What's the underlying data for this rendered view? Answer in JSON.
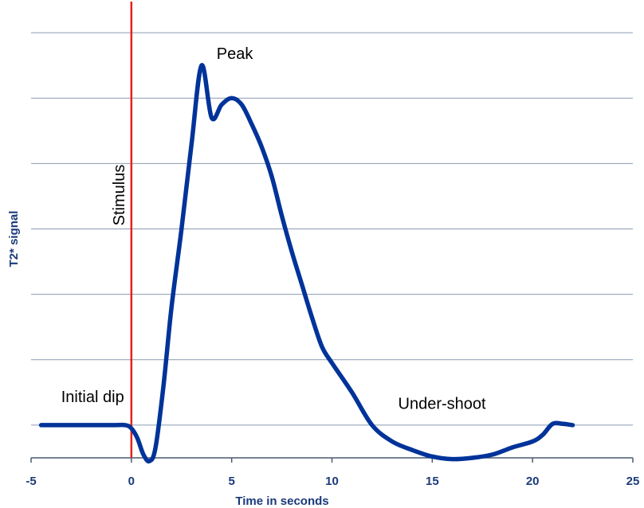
{
  "chart_data": {
    "type": "line",
    "title": "",
    "xlabel": "Time in seconds",
    "ylabel": "T2* signal",
    "xlim": [
      -5,
      25
    ],
    "ylim": [
      -0.5,
      6.5
    ],
    "xticks": [
      "-5",
      "0",
      "5",
      "10",
      "15",
      "20",
      "25"
    ],
    "grid": "horizontal",
    "series": [
      {
        "color": "#003399",
        "x": [
          -4.5,
          -3,
          -1,
          -0.3,
          0,
          0.3,
          0.6,
          0.9,
          1.2,
          1.6,
          2,
          2.5,
          3,
          3.5,
          4,
          4.5,
          5,
          5.5,
          6,
          6.5,
          7,
          7.5,
          8,
          8.5,
          9,
          9.5,
          10,
          11,
          12,
          13,
          14,
          15,
          16,
          17,
          18,
          19,
          20,
          20.5,
          21,
          21.5,
          22
        ],
        "y": [
          0,
          0,
          0,
          0,
          -0.05,
          -0.2,
          -0.45,
          -0.55,
          -0.35,
          0.6,
          1.8,
          3.0,
          4.3,
          5.5,
          4.7,
          4.9,
          5.0,
          4.9,
          4.6,
          4.25,
          3.8,
          3.2,
          2.65,
          2.15,
          1.65,
          1.2,
          0.95,
          0.5,
          0.0,
          -0.25,
          -0.38,
          -0.48,
          -0.52,
          -0.5,
          -0.45,
          -0.34,
          -0.25,
          -0.15,
          0.02,
          0.02,
          0.0
        ]
      }
    ],
    "markers": [
      {
        "label": "Stimulus",
        "x": 0,
        "color": "#e8211c"
      }
    ],
    "annotations": [
      {
        "text": "Peak",
        "x": 4.25,
        "y": 5.6
      },
      {
        "text": "Initial dip",
        "x": -3.5,
        "y": 0.35
      },
      {
        "text": "Under-shoot",
        "x": 13.3,
        "y": 0.25
      }
    ],
    "colors": {
      "axis_text": "#1a3a7a",
      "grid": "#8a9bb0",
      "axis": "#4a5a70"
    }
  }
}
